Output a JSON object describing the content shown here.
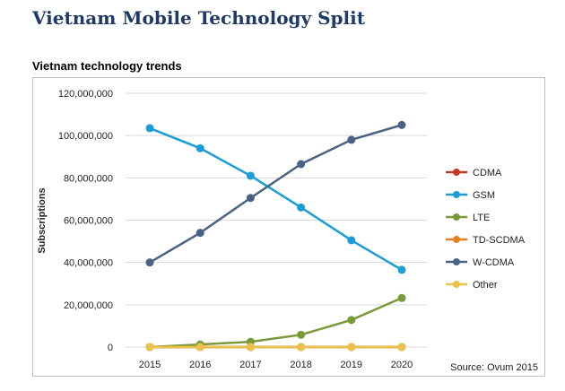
{
  "header": {
    "title": "Vietnam Mobile Technology Split"
  },
  "chart_data": {
    "type": "line",
    "title": "Vietnam technology trends",
    "xlabel": "",
    "ylabel": "Subscriptions",
    "x": [
      "2015",
      "2016",
      "2017",
      "2018",
      "2019",
      "2020"
    ],
    "ylim": [
      0,
      120000000
    ],
    "yticks": [
      "0",
      "20,000,000",
      "40,000,000",
      "60,000,000",
      "80,000,000",
      "100,000,000",
      "120,000,000"
    ],
    "ytick_values": [
      0,
      20000000,
      40000000,
      60000000,
      80000000,
      100000000,
      120000000
    ],
    "grid": true,
    "legend_position": "right",
    "source": "Source: Ovum 2015",
    "series": [
      {
        "name": "CDMA",
        "color": "#c0392b",
        "values": [
          0,
          0,
          0,
          0,
          0,
          0
        ]
      },
      {
        "name": "GSM",
        "color": "#1a9ed4",
        "values": [
          103500000,
          94000000,
          81000000,
          66000000,
          50500000,
          36500000
        ]
      },
      {
        "name": "LTE",
        "color": "#7a9a3a",
        "values": [
          0,
          1200000,
          2500000,
          5800000,
          12800000,
          23200000
        ]
      },
      {
        "name": "TD-SCDMA",
        "color": "#e67e22",
        "values": [
          0,
          0,
          0,
          0,
          0,
          0
        ]
      },
      {
        "name": "W-CDMA",
        "color": "#4a6283",
        "values": [
          40000000,
          54000000,
          70500000,
          86500000,
          98000000,
          105000000
        ]
      },
      {
        "name": "Other",
        "color": "#e8c24a",
        "values": [
          0,
          0,
          0,
          0,
          0,
          0
        ]
      }
    ]
  }
}
